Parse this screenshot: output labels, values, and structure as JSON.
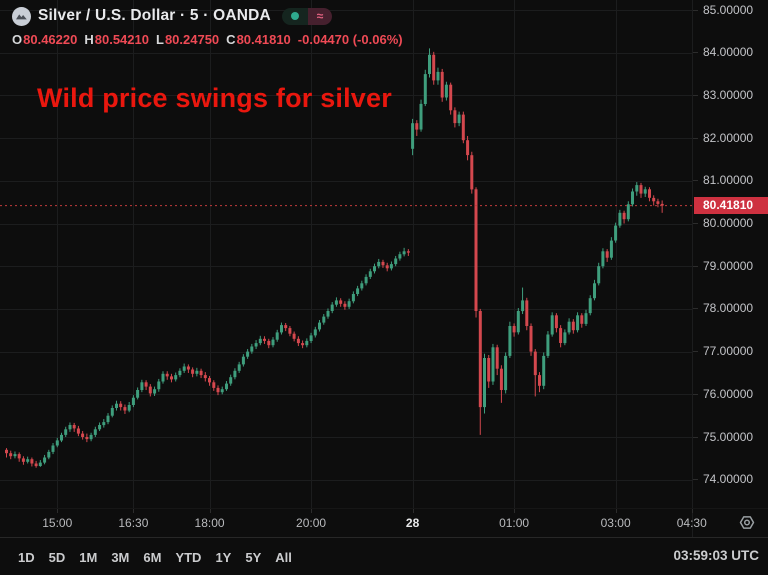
{
  "header": {
    "symbol_title": "Silver / U.S. Dollar · 5 · OANDA",
    "delayed_symbol": "≈",
    "ohlc": {
      "o_label": "O",
      "o": "80.46220",
      "h_label": "H",
      "h": "80.54210",
      "l_label": "L",
      "l": "80.24750",
      "c_label": "C",
      "c": "80.41810",
      "change": "-0.04470 (-0.06%)"
    }
  },
  "annotation": {
    "text": "Wild price swings for silver",
    "color": "#e9170e"
  },
  "price_scale": {
    "labels": [
      "85.00000",
      "84.00000",
      "83.00000",
      "82.00000",
      "81.00000",
      "80.00000",
      "79.00000",
      "78.00000",
      "77.00000",
      "76.00000",
      "75.00000",
      "74.00000"
    ],
    "last_price_label": "80.41810",
    "badge_color": "#ce3140"
  },
  "toolbar": {
    "ranges": [
      "1D",
      "5D",
      "1M",
      "3M",
      "6M",
      "YTD",
      "1Y",
      "5Y",
      "All"
    ],
    "clock": "03:59:03 UTC"
  },
  "chart_data": {
    "type": "candlestick",
    "title": "Silver / U.S. Dollar",
    "interval_minutes": 5,
    "exchange": "OANDA",
    "last_price": 80.4181,
    "price_axis": {
      "min": 74,
      "max": 85,
      "step": 1
    },
    "time_labels": [
      {
        "text": "15:00",
        "index": 12
      },
      {
        "text": "16:30",
        "index": 30
      },
      {
        "text": "18:00",
        "index": 48
      },
      {
        "text": "20:00",
        "index": 72
      },
      {
        "text": "28",
        "index": 96,
        "strong": true
      },
      {
        "text": "01:00",
        "index": 120
      },
      {
        "text": "03:00",
        "index": 144
      },
      {
        "text": "04:30",
        "index": 162
      }
    ],
    "session_note": "first candle 14:00 UTC, break before index 96 (gap up), last candle 03:55 UTC",
    "colors": {
      "up": "#3f9e7d",
      "down": "#d4484e",
      "grid": "#1c1d1e",
      "last_price_line": "#c23b3b"
    },
    "candles": [
      [
        74.7,
        74.74,
        74.52,
        74.62
      ],
      [
        74.62,
        74.68,
        74.48,
        74.55
      ],
      [
        74.55,
        74.66,
        74.5,
        74.6
      ],
      [
        74.6,
        74.64,
        74.42,
        74.5
      ],
      [
        74.5,
        74.55,
        74.35,
        74.42
      ],
      [
        74.42,
        74.54,
        74.38,
        74.48
      ],
      [
        74.48,
        74.52,
        74.31,
        74.38
      ],
      [
        74.38,
        74.44,
        74.28,
        74.32
      ],
      [
        74.32,
        74.46,
        74.3,
        74.4
      ],
      [
        74.4,
        74.58,
        74.36,
        74.52
      ],
      [
        74.52,
        74.7,
        74.48,
        74.65
      ],
      [
        74.65,
        74.86,
        74.6,
        74.8
      ],
      [
        74.8,
        74.98,
        74.76,
        74.92
      ],
      [
        74.92,
        75.1,
        74.88,
        75.05
      ],
      [
        75.05,
        75.24,
        75.0,
        75.18
      ],
      [
        75.18,
        75.34,
        75.12,
        75.28
      ],
      [
        75.28,
        75.33,
        75.12,
        75.2
      ],
      [
        75.2,
        75.26,
        75.02,
        75.08
      ],
      [
        75.08,
        75.14,
        74.94,
        75.0
      ],
      [
        75.0,
        75.08,
        74.88,
        74.95
      ],
      [
        74.95,
        75.1,
        74.9,
        75.05
      ],
      [
        75.05,
        75.24,
        75.0,
        75.18
      ],
      [
        75.18,
        75.34,
        75.14,
        75.28
      ],
      [
        75.28,
        75.42,
        75.22,
        75.35
      ],
      [
        75.35,
        75.56,
        75.3,
        75.5
      ],
      [
        75.5,
        75.74,
        75.46,
        75.68
      ],
      [
        75.68,
        75.85,
        75.62,
        75.78
      ],
      [
        75.78,
        75.84,
        75.62,
        75.7
      ],
      [
        75.7,
        75.76,
        75.54,
        75.62
      ],
      [
        75.62,
        75.82,
        75.58,
        75.75
      ],
      [
        75.75,
        75.98,
        75.7,
        75.92
      ],
      [
        75.92,
        76.16,
        75.88,
        76.1
      ],
      [
        76.1,
        76.34,
        76.05,
        76.28
      ],
      [
        76.28,
        76.33,
        76.1,
        76.18
      ],
      [
        76.18,
        76.24,
        75.95,
        76.02
      ],
      [
        76.02,
        76.18,
        75.96,
        76.12
      ],
      [
        76.12,
        76.36,
        76.06,
        76.3
      ],
      [
        76.3,
        76.54,
        76.25,
        76.48
      ],
      [
        76.48,
        76.54,
        76.34,
        76.42
      ],
      [
        76.42,
        76.48,
        76.28,
        76.35
      ],
      [
        76.35,
        76.51,
        76.3,
        76.45
      ],
      [
        76.45,
        76.61,
        76.4,
        76.55
      ],
      [
        76.55,
        76.72,
        76.5,
        76.65
      ],
      [
        76.65,
        76.7,
        76.5,
        76.58
      ],
      [
        76.58,
        76.63,
        76.4,
        76.48
      ],
      [
        76.48,
        76.62,
        76.42,
        76.55
      ],
      [
        76.55,
        76.6,
        76.38,
        76.45
      ],
      [
        76.45,
        76.52,
        76.3,
        76.38
      ],
      [
        76.38,
        76.43,
        76.2,
        76.28
      ],
      [
        76.28,
        76.33,
        76.08,
        76.15
      ],
      [
        76.15,
        76.21,
        75.98,
        76.05
      ],
      [
        76.05,
        76.18,
        76.0,
        76.12
      ],
      [
        76.12,
        76.31,
        76.08,
        76.25
      ],
      [
        76.25,
        76.46,
        76.2,
        76.4
      ],
      [
        76.4,
        76.61,
        76.35,
        76.55
      ],
      [
        76.55,
        76.76,
        76.5,
        76.7
      ],
      [
        76.7,
        76.94,
        76.65,
        76.88
      ],
      [
        76.88,
        77.06,
        76.83,
        77.0
      ],
      [
        77.0,
        77.18,
        76.95,
        77.12
      ],
      [
        77.12,
        77.27,
        77.06,
        77.2
      ],
      [
        77.2,
        77.37,
        77.15,
        77.3
      ],
      [
        77.3,
        77.36,
        77.18,
        77.25
      ],
      [
        77.25,
        77.3,
        77.08,
        77.15
      ],
      [
        77.15,
        77.34,
        77.1,
        77.28
      ],
      [
        77.28,
        77.51,
        77.23,
        77.45
      ],
      [
        77.45,
        77.68,
        77.4,
        77.62
      ],
      [
        77.62,
        77.67,
        77.48,
        77.55
      ],
      [
        77.55,
        77.6,
        77.36,
        77.42
      ],
      [
        77.42,
        77.47,
        77.24,
        77.3
      ],
      [
        77.3,
        77.36,
        77.13,
        77.2
      ],
      [
        77.2,
        77.26,
        77.08,
        77.15
      ],
      [
        77.15,
        77.31,
        77.1,
        77.25
      ],
      [
        77.25,
        77.44,
        77.2,
        77.38
      ],
      [
        77.38,
        77.58,
        77.33,
        77.52
      ],
      [
        77.52,
        77.74,
        77.47,
        77.68
      ],
      [
        77.68,
        77.88,
        77.63,
        77.82
      ],
      [
        77.82,
        78.01,
        77.77,
        77.95
      ],
      [
        77.95,
        78.16,
        77.9,
        78.1
      ],
      [
        78.1,
        78.27,
        78.05,
        78.2
      ],
      [
        78.2,
        78.25,
        78.05,
        78.12
      ],
      [
        78.12,
        78.18,
        77.98,
        78.05
      ],
      [
        78.05,
        78.24,
        78.0,
        78.18
      ],
      [
        78.18,
        78.41,
        78.13,
        78.35
      ],
      [
        78.35,
        78.54,
        78.3,
        78.48
      ],
      [
        78.48,
        78.66,
        78.43,
        78.6
      ],
      [
        78.6,
        78.81,
        78.55,
        78.75
      ],
      [
        78.75,
        78.94,
        78.7,
        78.88
      ],
      [
        78.88,
        79.06,
        78.83,
        79.0
      ],
      [
        79.0,
        79.17,
        78.95,
        79.1
      ],
      [
        79.1,
        79.15,
        78.96,
        79.02
      ],
      [
        79.02,
        79.08,
        78.88,
        78.95
      ],
      [
        78.95,
        79.11,
        78.9,
        79.05
      ],
      [
        79.05,
        79.24,
        79.0,
        79.18
      ],
      [
        79.18,
        79.34,
        79.13,
        79.28
      ],
      [
        79.28,
        79.43,
        79.23,
        79.35
      ],
      [
        79.35,
        79.4,
        79.24,
        79.32
      ],
      [
        81.75,
        82.45,
        81.6,
        82.35
      ],
      [
        82.35,
        82.42,
        82.05,
        82.2
      ],
      [
        82.2,
        82.9,
        82.15,
        82.8
      ],
      [
        82.8,
        83.6,
        82.75,
        83.5
      ],
      [
        83.5,
        84.1,
        83.42,
        83.95
      ],
      [
        83.95,
        84.02,
        83.25,
        83.35
      ],
      [
        83.35,
        83.65,
        83.25,
        83.55
      ],
      [
        83.55,
        83.62,
        82.85,
        82.95
      ],
      [
        82.95,
        83.32,
        82.88,
        83.25
      ],
      [
        83.25,
        83.3,
        82.55,
        82.65
      ],
      [
        82.65,
        82.72,
        82.25,
        82.35
      ],
      [
        82.35,
        82.62,
        82.28,
        82.55
      ],
      [
        82.55,
        82.62,
        81.88,
        81.95
      ],
      [
        81.95,
        82.05,
        81.48,
        81.6
      ],
      [
        81.6,
        81.68,
        80.7,
        80.8
      ],
      [
        80.8,
        80.85,
        77.8,
        77.95
      ],
      [
        77.95,
        78.0,
        75.05,
        75.7
      ],
      [
        75.7,
        76.95,
        75.55,
        76.85
      ],
      [
        76.85,
        76.92,
        76.15,
        76.3
      ],
      [
        76.3,
        77.18,
        76.22,
        77.1
      ],
      [
        77.1,
        77.16,
        76.45,
        76.6
      ],
      [
        76.6,
        76.68,
        75.8,
        76.1
      ],
      [
        76.1,
        76.98,
        76.02,
        76.9
      ],
      [
        76.9,
        77.7,
        76.85,
        77.6
      ],
      [
        77.6,
        77.66,
        77.35,
        77.45
      ],
      [
        77.45,
        78.02,
        77.4,
        77.95
      ],
      [
        77.95,
        78.5,
        77.88,
        78.2
      ],
      [
        78.2,
        78.26,
        77.5,
        77.6
      ],
      [
        77.6,
        77.66,
        76.9,
        77.0
      ],
      [
        77.0,
        77.06,
        75.95,
        76.45
      ],
      [
        76.45,
        76.52,
        76.05,
        76.2
      ],
      [
        76.2,
        76.98,
        76.12,
        76.9
      ],
      [
        76.9,
        77.48,
        76.85,
        77.4
      ],
      [
        77.4,
        77.92,
        77.35,
        77.85
      ],
      [
        77.85,
        77.9,
        77.45,
        77.55
      ],
      [
        77.55,
        77.62,
        77.1,
        77.2
      ],
      [
        77.2,
        77.52,
        77.15,
        77.45
      ],
      [
        77.45,
        77.78,
        77.4,
        77.7
      ],
      [
        77.7,
        77.76,
        77.42,
        77.5
      ],
      [
        77.5,
        77.92,
        77.45,
        77.85
      ],
      [
        77.85,
        77.9,
        77.56,
        77.65
      ],
      [
        77.65,
        77.98,
        77.6,
        77.9
      ],
      [
        77.9,
        78.32,
        77.85,
        78.25
      ],
      [
        78.25,
        78.68,
        78.2,
        78.6
      ],
      [
        78.6,
        79.08,
        78.55,
        79.0
      ],
      [
        79.0,
        79.42,
        78.95,
        79.35
      ],
      [
        79.35,
        79.4,
        79.1,
        79.2
      ],
      [
        79.2,
        79.68,
        79.15,
        79.6
      ],
      [
        79.6,
        80.02,
        79.55,
        79.95
      ],
      [
        79.95,
        80.32,
        79.9,
        80.25
      ],
      [
        80.25,
        80.3,
        80.0,
        80.1
      ],
      [
        80.1,
        80.52,
        80.05,
        80.45
      ],
      [
        80.45,
        80.82,
        80.4,
        80.75
      ],
      [
        80.75,
        80.97,
        80.65,
        80.9
      ],
      [
        80.9,
        80.95,
        80.6,
        80.7
      ],
      [
        80.7,
        80.86,
        80.62,
        80.8
      ],
      [
        80.8,
        80.85,
        80.52,
        80.6
      ],
      [
        80.6,
        80.66,
        80.42,
        80.52
      ],
      [
        80.52,
        80.58,
        80.38,
        80.46
      ],
      [
        80.46,
        80.54,
        80.25,
        80.42
      ]
    ]
  }
}
